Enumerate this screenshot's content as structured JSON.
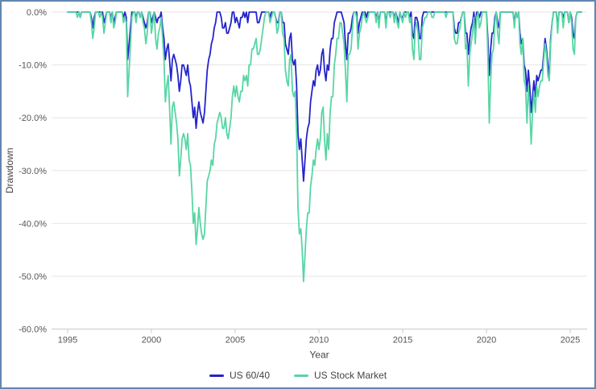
{
  "frame": {
    "border_color": "#5f87b0",
    "background": "#ffffff"
  },
  "axes": {
    "y_title": "Drawdown",
    "x_title": "Year",
    "y_tick_labels": [
      "0.0%",
      "-10.0%",
      "-20.0%",
      "-30.0%",
      "-40.0%",
      "-50.0%",
      "-60.0%"
    ],
    "y_tick_values": [
      0,
      -10,
      -20,
      -30,
      -40,
      -50,
      -60
    ],
    "x_tick_labels": [
      "1995",
      "2000",
      "2005",
      "2010",
      "2015",
      "2020",
      "2025"
    ],
    "x_tick_values": [
      1995,
      2000,
      2005,
      2010,
      2015,
      2020,
      2025
    ],
    "grid_color": "#e6e6e6",
    "axis_line_color": "#c8c8c8",
    "tick_text_color": "#555555",
    "title_text_color": "#444444"
  },
  "chart_data": {
    "type": "line",
    "title": "",
    "xlabel": "Year",
    "ylabel": "Drawdown",
    "y_format": "percent",
    "ylim": [
      -60,
      0
    ],
    "xlim": [
      1995,
      2026
    ],
    "grid": true,
    "legend_position": "bottom",
    "x_unit": "monthly",
    "x_start_year": 1995,
    "points_per_year": 12,
    "series": [
      {
        "name": "US 60/40",
        "color": "#2424cb",
        "values": [
          0,
          0,
          0,
          0,
          0,
          0,
          0,
          0,
          0,
          -1,
          0,
          0,
          0,
          0,
          0,
          0,
          0,
          -1,
          -3,
          -1,
          0,
          0,
          0,
          0,
          0,
          0,
          -2,
          -1,
          0,
          0,
          0,
          -1,
          0,
          -2,
          -1,
          0,
          0,
          0,
          0,
          0,
          -1,
          0,
          -1,
          -9,
          -6,
          -3,
          0,
          0,
          0,
          -1,
          0,
          0,
          -1,
          0,
          -1,
          -2,
          -3,
          -2,
          0,
          0,
          -2,
          -1,
          0,
          -1,
          -2,
          -1,
          -1,
          0,
          -3,
          -5,
          -9,
          -7,
          -6,
          -9,
          -13,
          -9,
          -8,
          -9,
          -10,
          -12,
          -15,
          -13,
          -10,
          -10,
          -11,
          -12,
          -10,
          -13,
          -14,
          -17,
          -20,
          -18,
          -22,
          -19,
          -17,
          -19,
          -20,
          -21,
          -19,
          -15,
          -11,
          -9,
          -8,
          -6,
          -5,
          -3,
          -2,
          0,
          0,
          0,
          -1,
          -3,
          -3,
          -2,
          -4,
          -4,
          -3,
          -2,
          0,
          0,
          -2,
          -1,
          -2,
          -3,
          -1,
          -1,
          0,
          -1,
          0,
          -2,
          0,
          0,
          0,
          0,
          0,
          0,
          -2,
          -2,
          -1,
          0,
          0,
          0,
          0,
          0,
          0,
          -1,
          0,
          0,
          0,
          -1,
          -2,
          -2,
          0,
          0,
          -2,
          -2,
          -6,
          -7,
          -8,
          -5,
          -4,
          -9,
          -10,
          -9,
          -14,
          -23,
          -26,
          -24,
          -28,
          -32,
          -28,
          -24,
          -22,
          -21,
          -17,
          -15,
          -13,
          -14,
          -11,
          -10,
          -12,
          -11,
          -8,
          -7,
          -11,
          -13,
          -10,
          -11,
          -7,
          -5,
          -5,
          -2,
          -1,
          0,
          0,
          0,
          0,
          -1,
          -2,
          -6,
          -9,
          -4,
          -4,
          -3,
          -1,
          0,
          0,
          0,
          -4,
          -2,
          -1,
          0,
          0,
          0,
          -1,
          0,
          0,
          0,
          0,
          0,
          0,
          -1,
          0,
          -2,
          0,
          0,
          0,
          0,
          -2,
          0,
          0,
          0,
          0,
          0,
          -1,
          0,
          -1,
          -2,
          0,
          -1,
          -1,
          0,
          0,
          0,
          0,
          -1,
          0,
          -4,
          -5,
          -1,
          -1,
          -2,
          -5,
          -5,
          -1,
          0,
          0,
          0,
          0,
          0,
          0,
          0,
          0,
          0,
          0,
          0,
          0,
          0,
          0,
          0,
          0,
          0,
          0,
          0,
          0,
          0,
          0,
          -3,
          -4,
          -4,
          -2,
          -2,
          -1,
          0,
          0,
          -4,
          -4,
          -8,
          -5,
          -3,
          -2,
          0,
          -3,
          0,
          0,
          -1,
          0,
          0,
          0,
          0,
          0,
          -5,
          -12,
          -7,
          -4,
          -4,
          -1,
          0,
          -2,
          -3,
          0,
          0,
          0,
          0,
          0,
          0,
          0,
          0,
          0,
          0,
          -2,
          0,
          -1,
          0,
          -4,
          -6,
          -5,
          -10,
          -11,
          -15,
          -11,
          -14,
          -19,
          -16,
          -13,
          -16,
          -12,
          -13,
          -12,
          -11,
          -11,
          -8,
          -5,
          -7,
          -10,
          -12,
          -5,
          -2,
          0,
          0,
          0,
          -3,
          0,
          0,
          0,
          -1,
          0,
          0,
          0,
          -2,
          0,
          -1,
          -4,
          -5,
          -1,
          0,
          0,
          0,
          0
        ]
      },
      {
        "name": "US Stock Market",
        "color": "#57d6a4",
        "values": [
          0,
          0,
          0,
          0,
          0,
          0,
          0,
          -1,
          0,
          -1,
          0,
          0,
          0,
          0,
          0,
          0,
          0,
          -2,
          -5,
          -3,
          0,
          0,
          0,
          -1,
          0,
          -1,
          -4,
          -2,
          0,
          0,
          0,
          -2,
          0,
          -3,
          -2,
          0,
          0,
          0,
          0,
          0,
          -2,
          -1,
          -2,
          -16,
          -11,
          -6,
          -1,
          0,
          0,
          -2,
          0,
          0,
          -1,
          0,
          -2,
          -3,
          -6,
          -4,
          0,
          0,
          -4,
          -2,
          0,
          -5,
          -7,
          -4,
          -3,
          -1,
          -5,
          -9,
          -17,
          -14,
          -12,
          -18,
          -25,
          -18,
          -17,
          -19,
          -21,
          -24,
          -31,
          -28,
          -24,
          -23,
          -24,
          -26,
          -23,
          -28,
          -29,
          -34,
          -40,
          -38,
          -44,
          -41,
          -37,
          -40,
          -42,
          -43,
          -42,
          -37,
          -32,
          -31,
          -30,
          -28,
          -29,
          -25,
          -24,
          -21,
          -20,
          -19,
          -20,
          -22,
          -22,
          -20,
          -23,
          -24,
          -22,
          -20,
          -16,
          -14,
          -16,
          -14,
          -16,
          -17,
          -15,
          -15,
          -12,
          -13,
          -12,
          -14,
          -10,
          -10,
          -7,
          -7,
          -6,
          -5,
          -8,
          -8,
          -7,
          -5,
          -3,
          -1,
          0,
          0,
          0,
          -2,
          -1,
          0,
          0,
          -1,
          -4,
          -3,
          0,
          0,
          -4,
          -5,
          -11,
          -13,
          -14,
          -9,
          -8,
          -15,
          -16,
          -15,
          -23,
          -37,
          -42,
          -41,
          -45,
          -51,
          -46,
          -41,
          -38,
          -38,
          -33,
          -31,
          -28,
          -29,
          -26,
          -24,
          -26,
          -24,
          -19,
          -18,
          -24,
          -28,
          -23,
          -26,
          -19,
          -16,
          -16,
          -10,
          -8,
          -5,
          -5,
          -2,
          -2,
          -4,
          -6,
          -11,
          -17,
          -8,
          -8,
          -7,
          -3,
          0,
          0,
          -1,
          -7,
          -4,
          -3,
          -1,
          0,
          -1,
          -2,
          -1,
          0,
          0,
          0,
          0,
          0,
          -2,
          0,
          -3,
          0,
          0,
          0,
          0,
          -3,
          0,
          0,
          -1,
          0,
          0,
          -2,
          0,
          -2,
          -3,
          0,
          -1,
          -2,
          0,
          -1,
          0,
          0,
          -2,
          -1,
          -7,
          -9,
          -3,
          -2,
          -4,
          -9,
          -9,
          -3,
          -2,
          -1,
          -1,
          0,
          0,
          0,
          -1,
          -1,
          0,
          0,
          0,
          0,
          0,
          0,
          0,
          0,
          -1,
          0,
          0,
          0,
          0,
          0,
          -5,
          -6,
          -6,
          -4,
          -3,
          -1,
          0,
          0,
          -7,
          -6,
          -14,
          -8,
          -6,
          -4,
          -1,
          -6,
          -1,
          0,
          -3,
          -2,
          0,
          0,
          0,
          0,
          -8,
          -21,
          -13,
          -8,
          -7,
          -2,
          0,
          -4,
          -6,
          0,
          0,
          0,
          0,
          0,
          0,
          0,
          0,
          0,
          0,
          -3,
          0,
          -1,
          0,
          -6,
          -8,
          -5,
          -13,
          -14,
          -21,
          -14,
          -18,
          -25,
          -19,
          -15,
          -19,
          -14,
          -16,
          -14,
          -13,
          -13,
          -9,
          -6,
          -8,
          -12,
          -13,
          -6,
          -2,
          0,
          0,
          0,
          -4,
          0,
          0,
          0,
          -3,
          0,
          0,
          0,
          -2,
          0,
          -2,
          -7,
          -8,
          -1,
          0,
          0,
          0,
          0
        ]
      }
    ]
  }
}
